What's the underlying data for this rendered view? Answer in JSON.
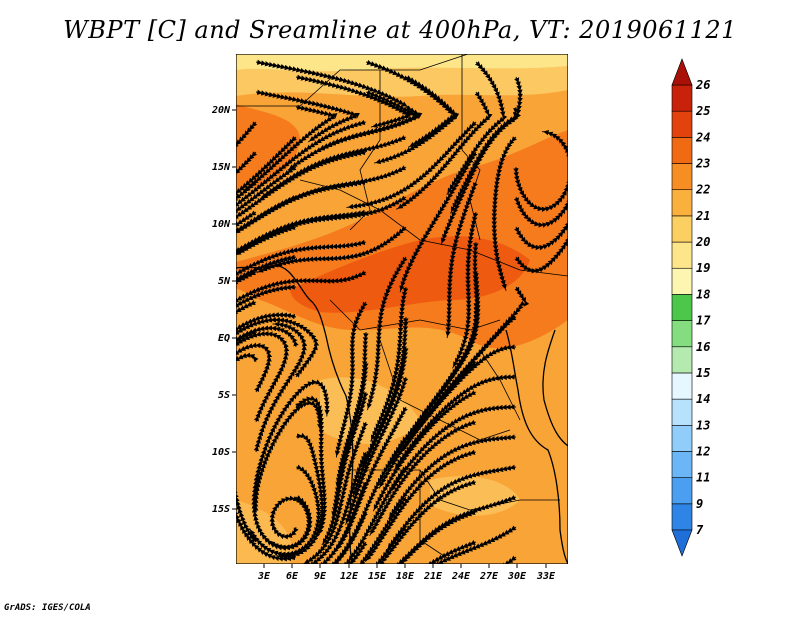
{
  "title": "WBPT [C] and Sreamline at 400hPa, VT: 2019061121",
  "credit": "GrADS: IGES/COLA",
  "map": {
    "lat_labels": [
      "20N",
      "15N",
      "10N",
      "5N",
      "EQ",
      "5S",
      "10S",
      "15S"
    ],
    "lon_labels": [
      "3E",
      "6E",
      "9E",
      "12E",
      "15E",
      "18E",
      "21E",
      "24E",
      "27E",
      "30E",
      "33E"
    ]
  },
  "colorbar": {
    "labels": [
      "7",
      "9",
      "11",
      "12",
      "13",
      "14",
      "15",
      "16",
      "17",
      "18",
      "19",
      "20",
      "21",
      "22",
      "23",
      "24",
      "25",
      "26"
    ],
    "colors": [
      "#1e6fd8",
      "#2f85e6",
      "#4a9ff0",
      "#6ab6f6",
      "#90cdfa",
      "#b8e1fc",
      "#e6f7ff",
      "#b4eab0",
      "#84de80",
      "#4cc74a",
      "#fdf6b0",
      "#fde58a",
      "#fccf62",
      "#f9b03c",
      "#f68e24",
      "#f06a14",
      "#e2420c",
      "#c8220a",
      "#a81008"
    ]
  },
  "colors": {
    "land_mid": "#f9a436",
    "land_warm": "#f57b1c",
    "land_hot": "#ee5a10",
    "land_cool": "#fcc862",
    "coast": "#000000"
  }
}
